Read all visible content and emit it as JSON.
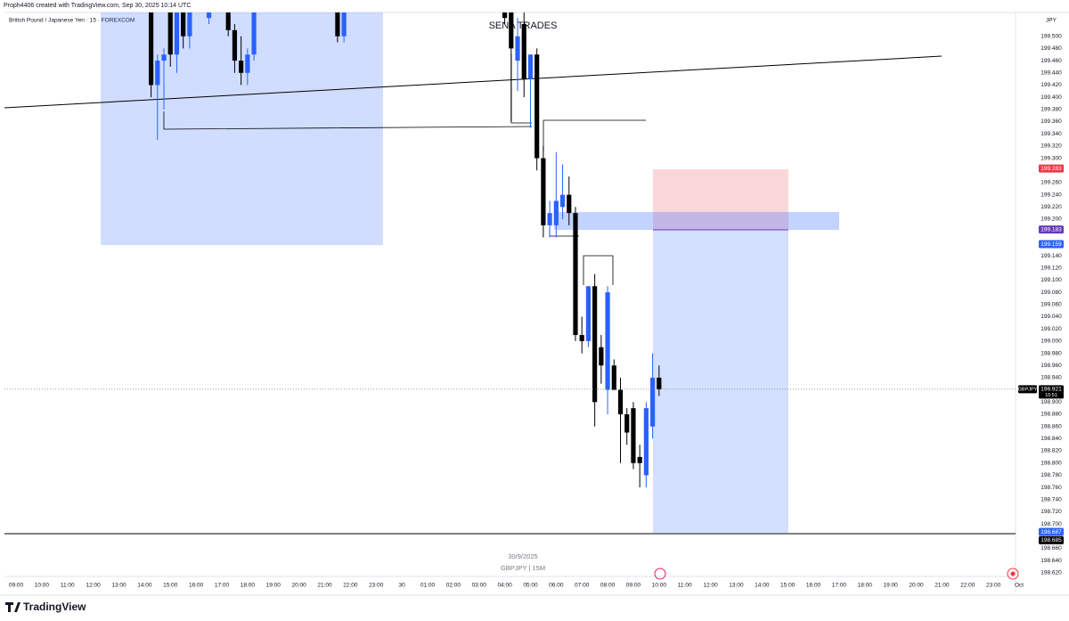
{
  "header": {
    "credit": "Proph4406 created with TradingView.com, Sep 30, 2025 10:14 UTC",
    "symbol": "British Pound / Japanese Yen · 15 · FOREXCOM"
  },
  "watermark": {
    "title": "SENA TRADES",
    "date": "30/9/2025",
    "subtitle": "GBPJPY | 15M"
  },
  "footer": {
    "brand": "TradingView"
  },
  "chart_data": {
    "type": "candlestick",
    "currency": "JPY",
    "xlim": [
      -0.45,
      38.86
    ],
    "ylim": [
      198.614,
      199.539
    ],
    "grid": false,
    "up_color": "#2962ff",
    "down_color": "#000000",
    "xticks": [
      {
        "value": 0,
        "label": "09:00"
      },
      {
        "value": 1,
        "label": "10:00"
      },
      {
        "value": 2,
        "label": "11:00"
      },
      {
        "value": 3,
        "label": "12:00"
      },
      {
        "value": 4,
        "label": "13:00"
      },
      {
        "value": 5,
        "label": "14:00"
      },
      {
        "value": 6,
        "label": "15:00"
      },
      {
        "value": 7,
        "label": "16:00"
      },
      {
        "value": 8,
        "label": "17:00"
      },
      {
        "value": 9,
        "label": "18:00"
      },
      {
        "value": 10,
        "label": "19:00"
      },
      {
        "value": 11,
        "label": "20:00"
      },
      {
        "value": 12,
        "label": "21:00"
      },
      {
        "value": 13,
        "label": "22:00"
      },
      {
        "value": 14,
        "label": "23:00"
      },
      {
        "value": 15,
        "label": "30"
      },
      {
        "value": 16,
        "label": "01:00"
      },
      {
        "value": 17,
        "label": "02:00"
      },
      {
        "value": 18,
        "label": "03:00"
      },
      {
        "value": 19,
        "label": "04:00"
      },
      {
        "value": 20,
        "label": "05:00"
      },
      {
        "value": 21,
        "label": "06:00"
      },
      {
        "value": 22,
        "label": "07:00"
      },
      {
        "value": 23,
        "label": "08:00"
      },
      {
        "value": 24,
        "label": "09:00"
      },
      {
        "value": 25,
        "label": "10:00"
      },
      {
        "value": 26,
        "label": "11:00"
      },
      {
        "value": 27,
        "label": "12:00"
      },
      {
        "value": 28,
        "label": "13:00"
      },
      {
        "value": 29,
        "label": "14:00"
      },
      {
        "value": 30,
        "label": "15:00"
      },
      {
        "value": 31,
        "label": "16:00"
      },
      {
        "value": 32,
        "label": "17:00"
      },
      {
        "value": 33,
        "label": "18:00"
      },
      {
        "value": 34,
        "label": "19:00"
      },
      {
        "value": 35,
        "label": "20:00"
      },
      {
        "value": 36,
        "label": "21:00"
      },
      {
        "value": 37,
        "label": "22:00"
      },
      {
        "value": 38,
        "label": "23:00"
      },
      {
        "value": 39,
        "label": "Oct"
      }
    ],
    "yticks": [
      {
        "value": 199.5,
        "label": "199.500"
      },
      {
        "value": 199.48,
        "label": "199.480"
      },
      {
        "value": 199.46,
        "label": "199.460"
      },
      {
        "value": 199.44,
        "label": "199.440"
      },
      {
        "value": 199.42,
        "label": "199.420"
      },
      {
        "value": 199.4,
        "label": "199.400"
      },
      {
        "value": 199.38,
        "label": "199.380"
      },
      {
        "value": 199.36,
        "label": "199.360"
      },
      {
        "value": 199.34,
        "label": "199.340"
      },
      {
        "value": 199.32,
        "label": "199.320"
      },
      {
        "value": 199.3,
        "label": "199.300"
      },
      {
        "value": 199.26,
        "label": "199.260"
      },
      {
        "value": 199.24,
        "label": "199.240"
      },
      {
        "value": 199.22,
        "label": "199.220"
      },
      {
        "value": 199.2,
        "label": "199.200"
      },
      {
        "value": 199.14,
        "label": "199.140"
      },
      {
        "value": 199.12,
        "label": "199.120"
      },
      {
        "value": 199.1,
        "label": "199.100"
      },
      {
        "value": 199.08,
        "label": "199.080"
      },
      {
        "value": 199.06,
        "label": "199.060"
      },
      {
        "value": 199.04,
        "label": "199.040"
      },
      {
        "value": 199.02,
        "label": "199.020"
      },
      {
        "value": 199.0,
        "label": "199.000"
      },
      {
        "value": 198.98,
        "label": "198.980"
      },
      {
        "value": 198.96,
        "label": "198.960"
      },
      {
        "value": 198.94,
        "label": "198.940"
      },
      {
        "value": 198.9,
        "label": "198.900"
      },
      {
        "value": 198.88,
        "label": "198.880"
      },
      {
        "value": 198.86,
        "label": "198.860"
      },
      {
        "value": 198.84,
        "label": "198.840"
      },
      {
        "value": 198.82,
        "label": "198.820"
      },
      {
        "value": 198.8,
        "label": "198.800"
      },
      {
        "value": 198.78,
        "label": "198.780"
      },
      {
        "value": 198.76,
        "label": "198.760"
      },
      {
        "value": 198.74,
        "label": "198.740"
      },
      {
        "value": 198.72,
        "label": "198.720"
      },
      {
        "value": 198.7,
        "label": "198.700"
      },
      {
        "value": 198.66,
        "label": "198.660"
      },
      {
        "value": 198.64,
        "label": "198.640"
      },
      {
        "value": 198.62,
        "label": "198.620"
      }
    ],
    "price_markers": [
      {
        "value": 199.283,
        "color": "#f23645"
      },
      {
        "value": 199.183,
        "color": "#673ab7"
      },
      {
        "value": 199.159,
        "color": "#2962ff"
      },
      {
        "value": 198.687,
        "color": "#2962ff"
      },
      {
        "value": 198.685,
        "color": "#000000"
      }
    ],
    "current_price": {
      "symbol": "GBPJPY",
      "value": 198.921,
      "countdown": "10:51"
    },
    "candles": {
      "x": [
        5.25,
        5.5,
        5.75,
        6.0,
        6.25,
        6.5,
        6.75,
        7.5,
        8.25,
        8.5,
        8.75,
        9.0,
        9.25,
        12.5,
        12.75,
        19.0,
        19.25,
        19.5,
        19.75,
        20.0,
        20.25,
        20.5,
        20.75,
        21.0,
        21.25,
        21.5,
        21.75,
        22.0,
        22.25,
        22.5,
        22.75,
        23.0,
        23.25,
        23.5,
        23.75,
        24.0,
        24.25,
        24.5,
        24.75,
        25.0
      ],
      "open": [
        199.58,
        199.42,
        199.46,
        199.56,
        199.47,
        199.56,
        199.5,
        199.53,
        199.58,
        199.51,
        199.46,
        199.44,
        199.47,
        199.58,
        199.5,
        199.56,
        199.55,
        199.46,
        199.52,
        199.43,
        199.47,
        199.3,
        199.19,
        199.19,
        199.22,
        199.24,
        199.21,
        199.01,
        199.0,
        199.09,
        198.99,
        198.92,
        198.96,
        198.92,
        198.88,
        198.89,
        198.81,
        198.78,
        198.86,
        198.94
      ],
      "high": [
        199.6,
        199.47,
        199.48,
        199.6,
        199.59,
        199.6,
        199.6,
        199.55,
        199.6,
        199.52,
        199.5,
        199.48,
        199.58,
        199.6,
        199.58,
        199.58,
        199.58,
        199.53,
        199.55,
        199.47,
        199.48,
        199.32,
        199.23,
        199.31,
        199.29,
        199.27,
        199.22,
        199.04,
        199.09,
        199.11,
        199.01,
        199.09,
        198.97,
        198.94,
        198.89,
        198.9,
        198.83,
        198.9,
        198.98,
        198.96
      ],
      "low": [
        199.4,
        199.33,
        199.38,
        199.45,
        199.44,
        199.48,
        199.48,
        199.52,
        199.5,
        199.44,
        199.42,
        199.42,
        199.46,
        199.49,
        199.49,
        199.52,
        199.36,
        199.41,
        199.4,
        199.35,
        199.28,
        199.17,
        199.17,
        199.17,
        199.2,
        199.19,
        199.0,
        198.98,
        198.99,
        198.86,
        198.93,
        198.88,
        198.92,
        198.8,
        198.83,
        198.79,
        198.76,
        198.76,
        198.84,
        198.91
      ],
      "close": [
        199.42,
        199.46,
        199.47,
        199.47,
        199.56,
        199.5,
        199.57,
        199.54,
        199.51,
        199.46,
        199.44,
        199.47,
        199.56,
        199.5,
        199.55,
        199.53,
        199.48,
        199.5,
        199.43,
        199.47,
        199.3,
        199.19,
        199.21,
        199.23,
        199.24,
        199.21,
        199.01,
        199.0,
        199.09,
        198.9,
        198.96,
        199.08,
        198.92,
        198.88,
        198.85,
        198.8,
        198.8,
        198.89,
        198.94,
        198.921
      ]
    }
  }
}
